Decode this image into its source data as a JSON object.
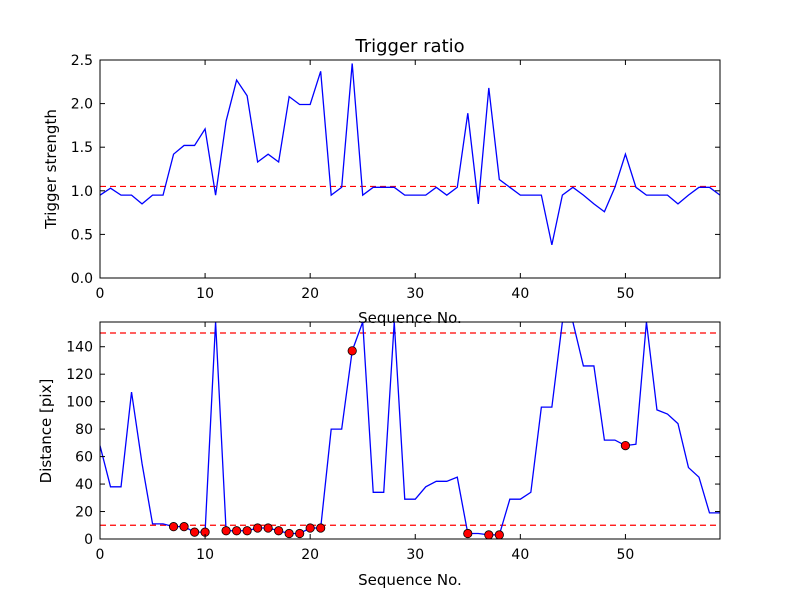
{
  "chart_data": [
    {
      "type": "line",
      "title": "Trigger ratio",
      "xlabel": "Sequence No.",
      "ylabel": "Trigger strength",
      "xlim": [
        0,
        59
      ],
      "ylim": [
        0,
        2.5
      ],
      "xticks": [
        "0",
        "10",
        "20",
        "30",
        "40",
        "50"
      ],
      "yticks": [
        "0.0",
        "0.5",
        "1.0",
        "1.5",
        "2.0",
        "2.5"
      ],
      "series": [
        {
          "style": "line",
          "color": "#0000ff",
          "x": [
            0,
            1,
            2,
            3,
            4,
            5,
            6,
            7,
            8,
            9,
            10,
            11,
            12,
            13,
            14,
            15,
            16,
            17,
            18,
            19,
            20,
            21,
            22,
            23,
            24,
            25,
            26,
            27,
            28,
            29,
            30,
            31,
            32,
            33,
            34,
            35,
            36,
            37,
            38,
            39,
            40,
            41,
            42,
            43,
            44,
            45,
            46,
            47,
            48,
            49,
            50,
            51,
            52,
            53,
            54,
            55,
            56,
            57,
            58,
            59
          ],
          "values": [
            0.95,
            1.03,
            0.95,
            0.95,
            0.85,
            0.95,
            0.95,
            1.42,
            1.52,
            1.52,
            1.71,
            0.95,
            1.8,
            2.27,
            2.09,
            1.33,
            1.42,
            1.33,
            2.08,
            1.99,
            1.99,
            2.37,
            0.95,
            1.04,
            2.46,
            0.95,
            1.04,
            1.04,
            1.04,
            0.95,
            0.95,
            0.95,
            1.04,
            0.95,
            1.04,
            1.89,
            0.85,
            2.18,
            1.13,
            1.04,
            0.95,
            0.95,
            0.95,
            0.38,
            0.95,
            1.04,
            0.95,
            0.85,
            0.76,
            1.04,
            1.42,
            1.04,
            0.95,
            0.95,
            0.95,
            0.85,
            0.95,
            1.04,
            1.04,
            0.95
          ]
        }
      ],
      "hlines": [
        {
          "y": 1.05,
          "color": "#ff0000",
          "style": "dashed"
        }
      ]
    },
    {
      "type": "line",
      "title": "",
      "xlabel": "Sequence No.",
      "ylabel": "Distance [pix]",
      "xlim": [
        0,
        59
      ],
      "ylim": [
        0,
        158
      ],
      "xticks": [
        "0",
        "10",
        "20",
        "30",
        "40",
        "50"
      ],
      "yticks": [
        "0",
        "20",
        "40",
        "60",
        "80",
        "100",
        "120",
        "140"
      ],
      "series": [
        {
          "style": "line",
          "color": "#0000ff",
          "x": [
            0,
            1,
            2,
            3,
            4,
            5,
            6,
            7,
            8,
            9,
            10,
            11,
            12,
            13,
            14,
            15,
            16,
            17,
            18,
            19,
            20,
            21,
            22,
            23,
            24,
            25,
            26,
            27,
            28,
            29,
            30,
            31,
            32,
            33,
            34,
            35,
            36,
            37,
            38,
            39,
            40,
            41,
            42,
            43,
            44,
            45,
            46,
            47,
            48,
            49,
            50,
            51,
            52,
            53,
            54,
            55,
            56,
            57,
            58,
            59
          ],
          "values": [
            68,
            38,
            38,
            107,
            55,
            11,
            11,
            9,
            9,
            5,
            5,
            158,
            6,
            6,
            6,
            8,
            8,
            6,
            4,
            4,
            8,
            8,
            80,
            80,
            137,
            158,
            34,
            34,
            158,
            29,
            29,
            38,
            42,
            42,
            45,
            4,
            4,
            3,
            3,
            29,
            29,
            34,
            96,
            96,
            158,
            158,
            126,
            126,
            72,
            72,
            68,
            69,
            158,
            94,
            91,
            84,
            52,
            45,
            19,
            19
          ]
        },
        {
          "style": "markers",
          "color": "#ff0000",
          "x": [
            7,
            8,
            9,
            10,
            12,
            13,
            14,
            15,
            16,
            17,
            18,
            19,
            20,
            21,
            24,
            35,
            37,
            38,
            50
          ],
          "values": [
            9,
            9,
            5,
            5,
            6,
            6,
            6,
            8,
            8,
            6,
            4,
            4,
            8,
            8,
            137,
            4,
            3,
            3,
            68
          ]
        }
      ],
      "hlines": [
        {
          "y": 10,
          "color": "#ff0000",
          "style": "dashed"
        },
        {
          "y": 150,
          "color": "#ff0000",
          "style": "dashed"
        }
      ]
    }
  ]
}
